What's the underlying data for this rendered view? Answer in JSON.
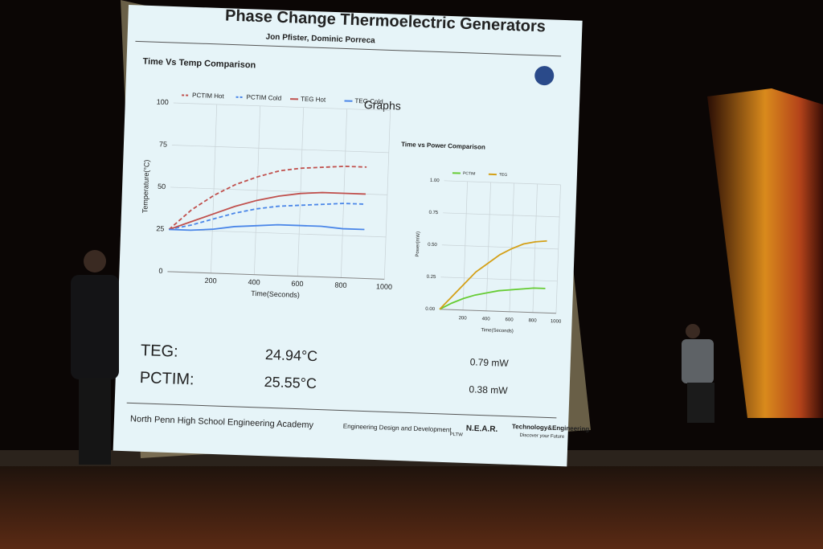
{
  "slide": {
    "title": "Phase Change Thermoelectric Generators",
    "authors": "Jon Pfister, Dominic Porreca",
    "heading": "Graphs",
    "results": [
      [
        "TEG:",
        "24.94°C",
        "0.79 mW"
      ],
      [
        "PCTIM:",
        "25.55°C",
        "0.38 mW"
      ]
    ],
    "footer": {
      "school": "North Penn High School Engineering Academy",
      "course": "Engineering Design and Development",
      "pltw": "PLTW",
      "near": "N.E.A.R.",
      "te": "Technology&Engineering",
      "te_sub": "Discover your Future"
    }
  },
  "chart_data": [
    {
      "type": "line",
      "title": "Time Vs Temp Comparison",
      "x_label": "Time(Seconds)",
      "y_label": "Temperature(°C)",
      "x": [
        0,
        100,
        200,
        300,
        400,
        500,
        600,
        700,
        800,
        900
      ],
      "xlim": [
        0,
        1000
      ],
      "xticks": [
        200,
        400,
        600,
        800,
        1000
      ],
      "ylim": [
        0,
        100
      ],
      "yticks": [
        0,
        25,
        50,
        75,
        100
      ],
      "grid": true,
      "series": [
        {
          "name": "PCTIM Hot",
          "color": "#c0504d",
          "style": "dashed",
          "values": [
            25,
            37,
            46,
            53,
            58,
            62,
            64,
            65,
            66,
            66
          ]
        },
        {
          "name": "PCTIM Cold",
          "color": "#4a86e8",
          "style": "dashed",
          "values": [
            25,
            28,
            32,
            36,
            39,
            41,
            42,
            43,
            44,
            44
          ]
        },
        {
          "name": "TEG Hot",
          "color": "#c0504d",
          "style": "solid",
          "values": [
            25,
            30,
            35,
            40,
            44,
            47,
            49,
            50,
            50,
            50
          ]
        },
        {
          "name": "TEG Cold",
          "color": "#4a86e8",
          "style": "solid",
          "values": [
            25,
            25,
            26,
            28,
            29,
            30,
            30,
            30,
            29,
            29
          ]
        }
      ]
    },
    {
      "type": "line",
      "title": "Time vs Power Comparison",
      "x_label": "Time(Seconds)",
      "y_label": "Power(mW)",
      "x": [
        0,
        100,
        200,
        300,
        400,
        500,
        600,
        700,
        800,
        900
      ],
      "xlim": [
        0,
        1000
      ],
      "xticks": [
        200,
        400,
        600,
        800,
        1000
      ],
      "ylim": [
        0,
        1
      ],
      "yticks": [
        {
          "value": 0,
          "label": "0.00"
        },
        0.25,
        {
          "value": 0.5,
          "label": "0.50"
        },
        0.75,
        {
          "value": 1,
          "label": "1.00"
        }
      ],
      "grid": true,
      "series": [
        {
          "name": "PCTIM",
          "color": "#66cc33",
          "style": "solid",
          "values": [
            0,
            0.05,
            0.09,
            0.12,
            0.14,
            0.16,
            0.17,
            0.18,
            0.19,
            0.19
          ]
        },
        {
          "name": "TEG",
          "color": "#d4a017",
          "style": "solid",
          "values": [
            0,
            0.1,
            0.2,
            0.3,
            0.37,
            0.44,
            0.49,
            0.53,
            0.55,
            0.56
          ]
        }
      ]
    }
  ]
}
